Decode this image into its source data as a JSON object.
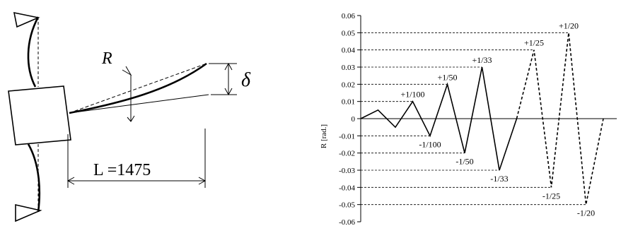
{
  "specimen": {
    "rotation_label": "R",
    "displacement_label": "δ",
    "length_label": "L =1475"
  },
  "chart_data": {
    "type": "line",
    "ylabel": "R [rad.]",
    "ylim": [
      -0.06,
      0.06
    ],
    "y_ticks": [
      0.06,
      0.05,
      0.04,
      0.03,
      0.02,
      0.01,
      0,
      -0.01,
      -0.02,
      -0.03,
      -0.04,
      -0.05,
      -0.06
    ],
    "y_tick_labels": [
      "0.06",
      "0.05",
      "0.04",
      "0.03",
      "0.02",
      "0.01",
      "0",
      "-0.01",
      "-0.02",
      "-0.03",
      "-0.04",
      "-0.05",
      "-0.06"
    ],
    "grid": false,
    "series": [
      {
        "style": "solid",
        "values": [
          0,
          0.005,
          -0.005,
          0.01,
          -0.01,
          0.02,
          -0.02,
          0.03,
          -0.03,
          0.0
        ]
      },
      {
        "style": "dashed",
        "values": [
          0.0,
          0.04,
          -0.04,
          0.05,
          -0.05,
          0.0
        ]
      }
    ],
    "annotations": [
      {
        "text": "+1/100",
        "value": 0.01
      },
      {
        "text": "-1/100",
        "value": -0.01
      },
      {
        "text": "+1/50",
        "value": 0.02
      },
      {
        "text": "-1/50",
        "value": -0.02
      },
      {
        "text": "+1/33",
        "value": 0.03
      },
      {
        "text": "-1/33",
        "value": -0.03
      },
      {
        "text": "+1/25",
        "value": 0.04
      },
      {
        "text": "-1/25",
        "value": -0.04
      },
      {
        "text": "+1/20",
        "value": 0.05
      },
      {
        "text": "-1/20",
        "value": -0.05
      }
    ]
  }
}
